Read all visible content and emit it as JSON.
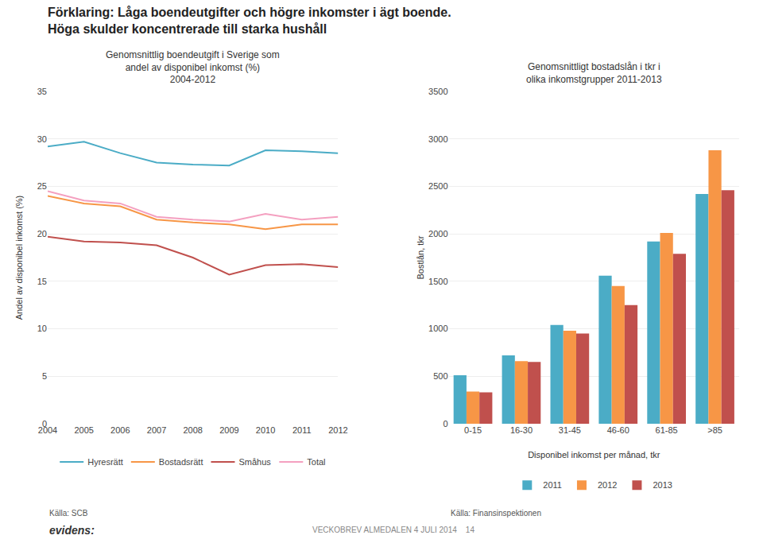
{
  "title": "Förklaring: Låga boendeutgifter och högre inkomster i ägt boende.\nHöga skulder koncentrerade till starka hushåll",
  "annotations": [
    "evidens:",
    "VECKOBREV ALMEDALEN 4 JULI 2014    14"
  ],
  "chart_data": [
    {
      "type": "line",
      "title": "Genomsnittlig boendeutgift i Sverige som\nandel av disponibel inkomst (%)\n2004-2012",
      "ylabel": "Andel av disponibel inkomst (%)",
      "x": [
        2004,
        2005,
        2006,
        2007,
        2008,
        2009,
        2010,
        2011,
        2012
      ],
      "series": [
        {
          "name": "Hyresrätt",
          "color": "#4bacc6",
          "values": [
            29.2,
            29.7,
            28.5,
            27.5,
            27.3,
            27.2,
            28.8,
            28.7,
            28.5
          ]
        },
        {
          "name": "Bostadsrätt",
          "color": "#f79646",
          "values": [
            24.0,
            23.2,
            22.9,
            21.5,
            21.2,
            21.0,
            20.5,
            21.0,
            21.0
          ]
        },
        {
          "name": "Småhus",
          "color": "#c0504d",
          "values": [
            19.7,
            19.2,
            19.1,
            18.8,
            17.5,
            15.7,
            16.7,
            16.8,
            16.5
          ]
        },
        {
          "name": "Total",
          "color": "#f4a0c0",
          "values": [
            24.5,
            23.5,
            23.2,
            21.8,
            21.5,
            21.3,
            22.1,
            21.5,
            21.8
          ]
        }
      ],
      "xlim": [
        2004,
        2012
      ],
      "xticks": [
        2004,
        2005,
        2006,
        2007,
        2008,
        2009,
        2010,
        2011,
        2012
      ],
      "ylim": [
        0,
        35
      ],
      "yticks": [
        0,
        5,
        10,
        15,
        20,
        25,
        30,
        35
      ],
      "grid": true,
      "legend": "bottom",
      "annotations": [
        "Källa: SCB"
      ]
    },
    {
      "type": "bar",
      "title": "Genomsnittligt bostadslån i tkr i\nolika inkomstgrupper 2011-2013",
      "ylabel": "Bostlån, tkr",
      "xlabel": "Disponibel inkomst per månad, tkr",
      "categories": [
        "0-15",
        "16-30",
        "31-45",
        "46-60",
        "61-85",
        ">85"
      ],
      "series": [
        {
          "name": "2011",
          "color": "#4bacc6",
          "values": [
            510,
            720,
            1040,
            1560,
            1920,
            2420
          ]
        },
        {
          "name": "2012",
          "color": "#f79646",
          "values": [
            340,
            660,
            980,
            1450,
            2010,
            2880
          ]
        },
        {
          "name": "2013",
          "color": "#c0504d",
          "values": [
            330,
            650,
            950,
            1250,
            1790,
            2460
          ]
        }
      ],
      "ylim": [
        0,
        3500
      ],
      "yticks": [
        0,
        500,
        1000,
        1500,
        2000,
        2500,
        3000,
        3500
      ],
      "grid": true,
      "legend": "bottom",
      "annotations": [
        "Källa: Finansinspektionen"
      ]
    }
  ]
}
